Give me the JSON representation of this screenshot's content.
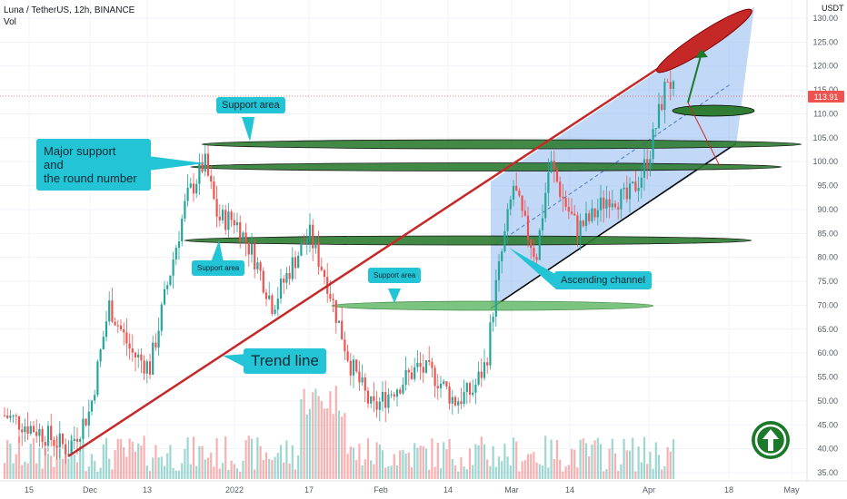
{
  "header": {
    "symbol_line": "Luna / TetherUS, 12h, BINANCE",
    "vol_label": "Vol",
    "currency": "USDT"
  },
  "price_axis": {
    "ticks": [
      "130.00",
      "125.00",
      "120.00",
      "115.00",
      "110.00",
      "105.00",
      "100.00",
      "95.00",
      "90.00",
      "85.00",
      "80.00",
      "75.00",
      "70.00",
      "65.00",
      "60.00",
      "55.00",
      "50.00",
      "45.00",
      "40.00",
      "35.00"
    ],
    "last_price": "113.91"
  },
  "time_axis": {
    "ticks": [
      "15",
      "Dec",
      "13",
      "2022",
      "17",
      "Feb",
      "14",
      "Mar",
      "14",
      "Apr",
      "18",
      "May"
    ]
  },
  "annotations": {
    "support_area_top": "Support area",
    "major_support_line1": "Major support",
    "major_support_line2": "and",
    "major_support_line3": "the round number",
    "support_area_mid": "Support area",
    "support_area_low": "Support area",
    "ascending_channel": "Ascending channel",
    "trend_line": "Trend line"
  },
  "colors": {
    "up": "#26a69a",
    "down": "#ef5350",
    "zone_fill": "#2e7d32",
    "trend": "#c62828",
    "channel_fill": "#90b8f0",
    "callout": "#22c4d6",
    "arrow_icon": "#1b7a2a"
  },
  "chart_data": {
    "type": "candlestick",
    "title": "Luna / TetherUS, 12h, BINANCE",
    "y_unit": "USDT",
    "ylim": [
      35,
      130
    ],
    "x_ticks": [
      "15",
      "Dec",
      "13",
      "2022",
      "17",
      "Feb",
      "14",
      "Mar",
      "14",
      "Apr",
      "18",
      "May"
    ],
    "last_price": 113.91,
    "support_zones": [
      110.5,
      104,
      99,
      84,
      70.5
    ],
    "key_closes": [
      {
        "x": "15",
        "value": 45
      },
      {
        "x": "Dec",
        "value": 48
      },
      {
        "x": "13",
        "value": 70
      },
      {
        "x": "2022",
        "value": 88
      },
      {
        "x": "17",
        "value": 75
      },
      {
        "x": "Feb",
        "value": 52
      },
      {
        "x": "14",
        "value": 57
      },
      {
        "x": "Mar",
        "value": 90
      },
      {
        "x": "14",
        "value": 88
      },
      {
        "x": "Apr",
        "value": 113.91
      }
    ]
  }
}
